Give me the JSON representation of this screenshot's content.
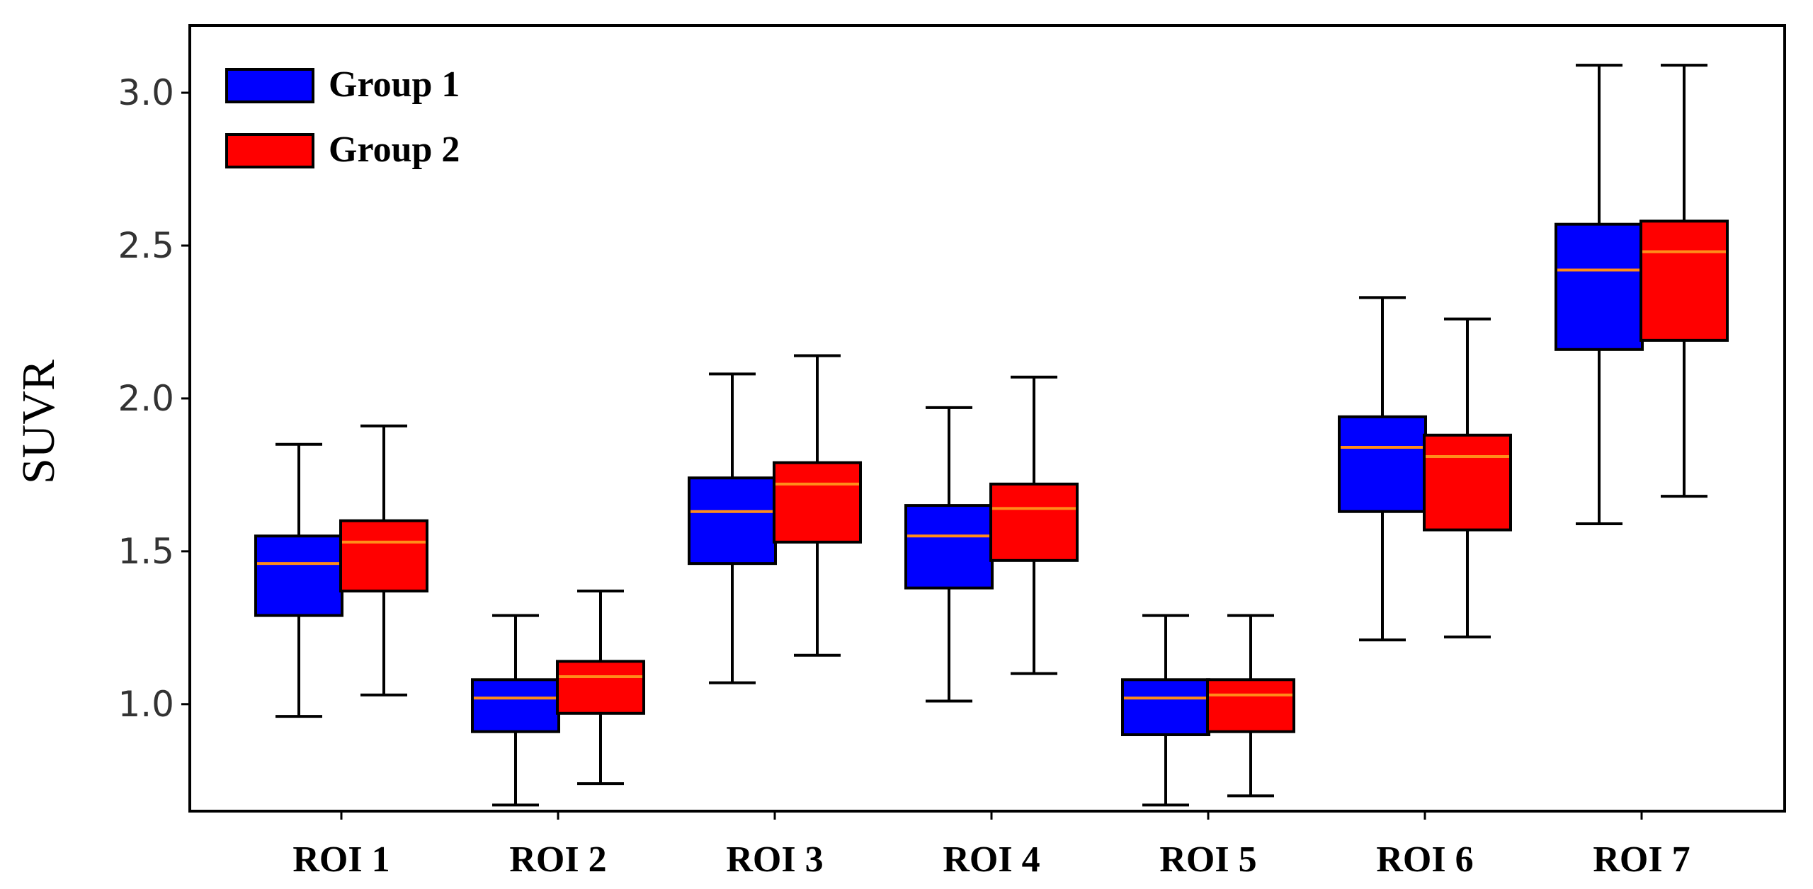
{
  "chart_data": {
    "type": "box",
    "title": "",
    "xlabel": "",
    "ylabel": "SUVR",
    "ylim": [
      0.65,
      3.22
    ],
    "yticks": [
      "1.0",
      "1.5",
      "2.0",
      "2.5",
      "3.0"
    ],
    "categories": [
      "ROI 1",
      "ROI 2",
      "ROI 3",
      "ROI 4",
      "ROI 5",
      "ROI 6",
      "ROI 7"
    ],
    "legend_position": "top-left",
    "grid": false,
    "median_color": "#ff8c1a",
    "series": [
      {
        "name": "Group 1",
        "color": "#0000ff",
        "boxes": [
          {
            "min": 0.96,
            "q1": 1.29,
            "median": 1.46,
            "q3": 1.55,
            "max": 1.85
          },
          {
            "min": 0.67,
            "q1": 0.91,
            "median": 1.02,
            "q3": 1.08,
            "max": 1.29
          },
          {
            "min": 1.07,
            "q1": 1.46,
            "median": 1.63,
            "q3": 1.74,
            "max": 2.08
          },
          {
            "min": 1.01,
            "q1": 1.38,
            "median": 1.55,
            "q3": 1.65,
            "max": 1.97
          },
          {
            "min": 0.67,
            "q1": 0.9,
            "median": 1.02,
            "q3": 1.08,
            "max": 1.29
          },
          {
            "min": 1.21,
            "q1": 1.63,
            "median": 1.84,
            "q3": 1.94,
            "max": 2.33
          },
          {
            "min": 1.59,
            "q1": 2.16,
            "median": 2.42,
            "q3": 2.57,
            "max": 3.09
          }
        ]
      },
      {
        "name": "Group 2",
        "color": "#ff0000",
        "boxes": [
          {
            "min": 1.03,
            "q1": 1.37,
            "median": 1.53,
            "q3": 1.6,
            "max": 1.91
          },
          {
            "min": 0.74,
            "q1": 0.97,
            "median": 1.09,
            "q3": 1.14,
            "max": 1.37
          },
          {
            "min": 1.16,
            "q1": 1.53,
            "median": 1.72,
            "q3": 1.79,
            "max": 2.14
          },
          {
            "min": 1.1,
            "q1": 1.47,
            "median": 1.64,
            "q3": 1.72,
            "max": 2.07
          },
          {
            "min": 0.7,
            "q1": 0.91,
            "median": 1.03,
            "q3": 1.08,
            "max": 1.29
          },
          {
            "min": 1.22,
            "q1": 1.57,
            "median": 1.81,
            "q3": 1.88,
            "max": 2.26
          },
          {
            "min": 1.68,
            "q1": 2.19,
            "median": 2.48,
            "q3": 2.58,
            "max": 3.09
          }
        ]
      }
    ]
  }
}
